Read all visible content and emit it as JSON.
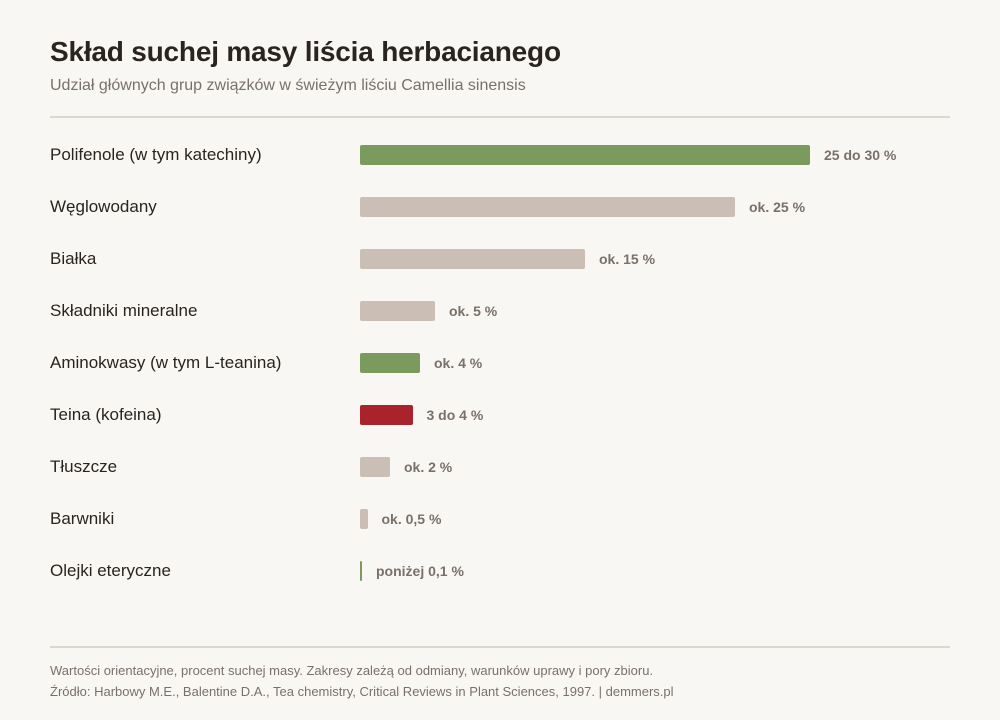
{
  "header": {
    "title": "Skład suchej masy liścia herbacianego",
    "subtitle": "Udział głównych grup związków w świeżym liściu Camellia sinensis"
  },
  "colors": {
    "highlight_green": "#7b9a5d",
    "highlight_red": "#a8232c",
    "neutral": "#cbbfb5"
  },
  "chart_data": {
    "type": "bar",
    "orientation": "horizontal",
    "title": "Skład suchej masy liścia herbacianego",
    "subtitle": "Udział głównych grup związków w świeżym liściu Camellia sinensis",
    "unit": "%",
    "xlim": [
      0,
      30
    ],
    "grid": false,
    "categories": [
      "Polifenole (w tym katechiny)",
      "Węglowodany",
      "Białka",
      "Składniki mineralne",
      "Aminokwasy (w tym L-teanina)",
      "Teina (kofeina)",
      "Tłuszcze",
      "Barwniki",
      "Olejki eteryczne"
    ],
    "values": [
      30,
      25,
      15,
      5,
      4,
      3.5,
      2,
      0.5,
      0.1
    ],
    "value_labels": [
      "25 do 30 %",
      "ok. 25 %",
      "ok. 15 %",
      "ok. 5 %",
      "ok. 4 %",
      "3 do 4 %",
      "ok. 2 %",
      "ok. 0,5 %",
      "poniżej 0,1 %"
    ],
    "bar_colors": [
      "#7b9a5d",
      "#cbbfb5",
      "#cbbfb5",
      "#cbbfb5",
      "#7b9a5d",
      "#a8232c",
      "#cbbfb5",
      "#cbbfb5",
      "#7b9a5d"
    ]
  },
  "footer": {
    "note": "Wartości orientacyjne, procent suchej masy. Zakresy zależą od odmiany, warunków uprawy i pory zbioru.",
    "source": "Źródło: Harbowy M.E., Balentine D.A., Tea chemistry, Critical Reviews in Plant Sciences, 1997. | demmers.pl"
  }
}
